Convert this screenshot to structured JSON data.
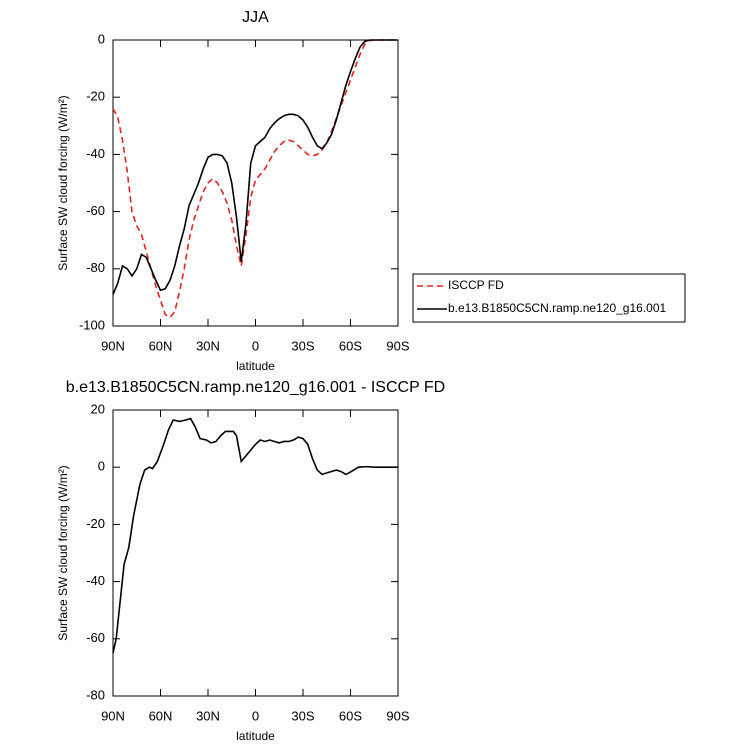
{
  "chart_data": [
    {
      "type": "line",
      "title": "JJA",
      "xlabel": "latitude",
      "ylabel": "Surface SW cloud forcing (W/m²)",
      "xlim": [
        90,
        -90
      ],
      "xticks": [
        {
          "value": 90,
          "label": "90N"
        },
        {
          "value": 60,
          "label": "60N"
        },
        {
          "value": 30,
          "label": "30N"
        },
        0,
        {
          "value": -30,
          "label": "30S"
        },
        {
          "value": -60,
          "label": "60S"
        },
        {
          "value": -90,
          "label": "90S"
        }
      ],
      "ylim": [
        -100,
        0
      ],
      "yticks": [
        -100,
        -80,
        -60,
        -40,
        -20,
        0
      ],
      "legend": "outside-right",
      "x": [
        90,
        87,
        84,
        81,
        78,
        75,
        72,
        69,
        66,
        63,
        60,
        57,
        54,
        51,
        48,
        45,
        42,
        39,
        36,
        33,
        30,
        27,
        24,
        21,
        18,
        15,
        12,
        9,
        6,
        3,
        0,
        -3,
        -6,
        -9,
        -12,
        -15,
        -18,
        -21,
        -24,
        -27,
        -30,
        -33,
        -36,
        -39,
        -42,
        -45,
        -48,
        -51,
        -54,
        -57,
        -60,
        -63,
        -66,
        -69,
        -72,
        -75,
        -80,
        -85,
        -90
      ],
      "series": [
        {
          "name": "ISCCP FD",
          "color": "#e32222",
          "style": "dashed",
          "values": [
            -24,
            -27,
            -35,
            -46,
            -60,
            -65,
            -68,
            -74,
            -80,
            -86,
            -91,
            -96,
            -97,
            -95,
            -88,
            -80,
            -70,
            -63,
            -58,
            -53,
            -50,
            -48.5,
            -50,
            -53,
            -57,
            -63,
            -72,
            -79,
            -68,
            -55,
            -49,
            -47,
            -45,
            -42,
            -39,
            -37,
            -35.5,
            -35,
            -35.5,
            -37,
            -38.5,
            -40,
            -40.5,
            -40,
            -38.5,
            -36,
            -32,
            -27.5,
            -23,
            -18.5,
            -14,
            -9.5,
            -5,
            -1.5,
            -0.2,
            0,
            0,
            0,
            0
          ]
        },
        {
          "name": "b.e13.B1850C5CN.ramp.ne120_g16.001",
          "color": "#000000",
          "style": "solid",
          "values": [
            -89,
            -85,
            -79,
            -80,
            -82.5,
            -80,
            -75,
            -76,
            -80,
            -84,
            -87.5,
            -87,
            -84,
            -79,
            -72,
            -66,
            -58,
            -54,
            -50,
            -45,
            -41,
            -40,
            -40,
            -40.5,
            -43,
            -50,
            -62,
            -77.5,
            -64,
            -43,
            -37,
            -35.5,
            -34,
            -31,
            -29,
            -27.5,
            -26.5,
            -26,
            -26,
            -26.5,
            -28,
            -30.5,
            -34,
            -37,
            -38,
            -36,
            -33,
            -28,
            -22,
            -16,
            -11,
            -6.5,
            -2.5,
            -0.5,
            0,
            0,
            0,
            0,
            0
          ]
        }
      ]
    },
    {
      "type": "line",
      "title": "b.e13.B1850C5CN.ramp.ne120_g16.001 - ISCCP FD",
      "xlabel": "latitude",
      "ylabel": "Surface SW cloud forcing (W/m²)",
      "xlim": [
        90,
        -90
      ],
      "xticks": [
        {
          "value": 90,
          "label": "90N"
        },
        {
          "value": 60,
          "label": "60N"
        },
        {
          "value": 30,
          "label": "30N"
        },
        0,
        {
          "value": -30,
          "label": "30S"
        },
        {
          "value": -60,
          "label": "60S"
        },
        {
          "value": -90,
          "label": "90S"
        }
      ],
      "ylim": [
        -80,
        20
      ],
      "yticks": [
        -80,
        -60,
        -40,
        -20,
        0,
        20
      ],
      "x": [
        90,
        88,
        83,
        80,
        77,
        73,
        70,
        67,
        65,
        62,
        58,
        55,
        52,
        48,
        44,
        41,
        38,
        35,
        31,
        28,
        25,
        22,
        19,
        14,
        12,
        9,
        6,
        3,
        0,
        -3,
        -6,
        -9,
        -12,
        -15,
        -18,
        -21,
        -24,
        -27,
        -30,
        -33,
        -36,
        -39,
        -42,
        -45,
        -48,
        -51,
        -54,
        -57,
        -59,
        -62,
        -65,
        -70,
        -75,
        -90
      ],
      "series": [
        {
          "color": "#000000",
          "style": "solid",
          "values": [
            -65,
            -60,
            -34,
            -28,
            -17,
            -6,
            -1,
            0,
            -0.5,
            2,
            8,
            13,
            16.5,
            16,
            16.5,
            17,
            14,
            10,
            9.5,
            8.5,
            9,
            11,
            12.5,
            12.5,
            11,
            2,
            4,
            6,
            8,
            9.5,
            9,
            9.5,
            9,
            8.5,
            9,
            9,
            9.5,
            10.5,
            10,
            8,
            3,
            -1,
            -2.5,
            -2,
            -1.5,
            -1,
            -1.5,
            -2.5,
            -2,
            -1,
            0,
            0.2,
            0,
            0
          ]
        }
      ]
    }
  ]
}
